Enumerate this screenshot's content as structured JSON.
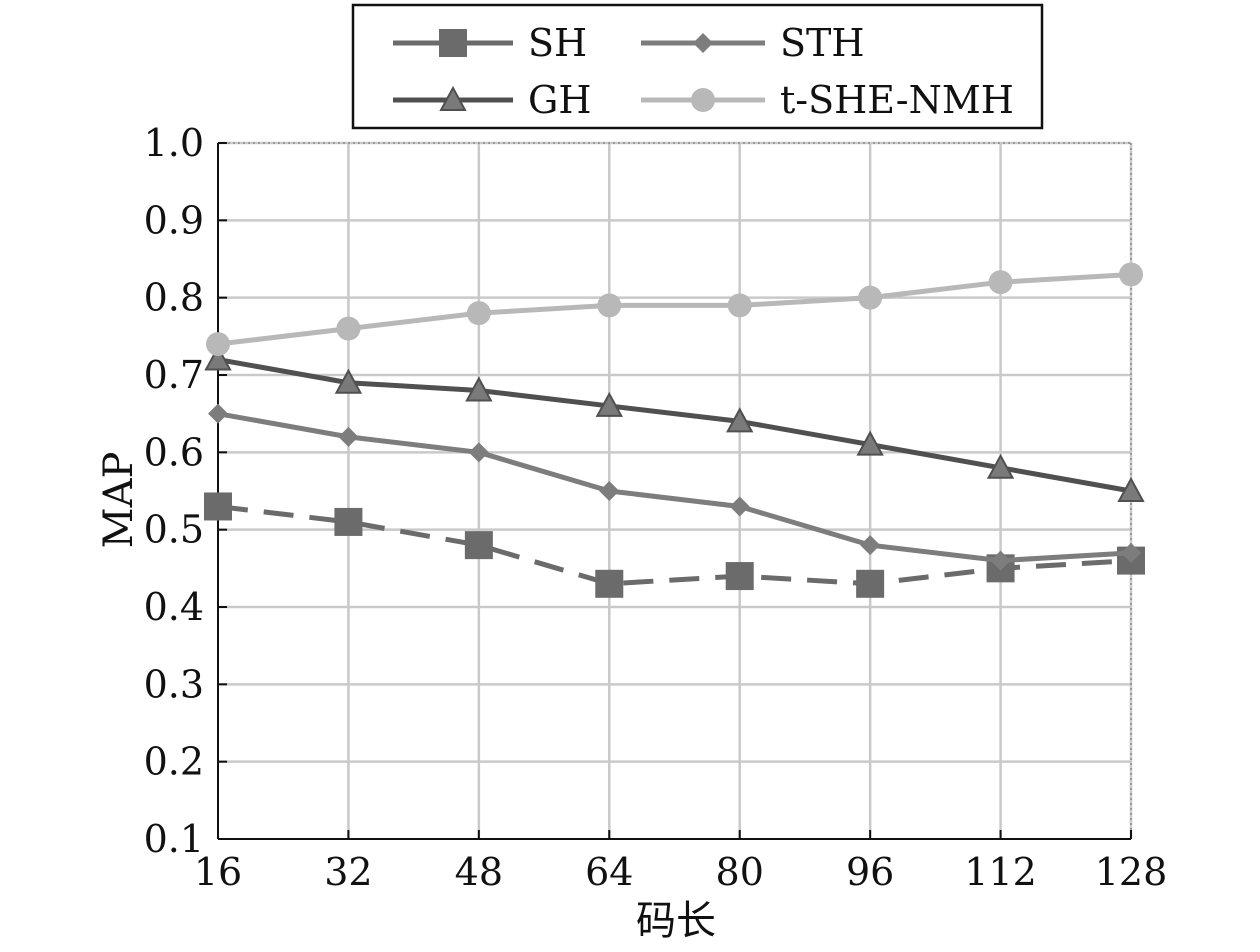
{
  "chart_data": {
    "type": "line",
    "title": "",
    "xlabel": "码长",
    "ylabel": "MAP",
    "x": [
      16,
      32,
      48,
      64,
      80,
      96,
      112,
      128
    ],
    "x_tick_labels": [
      "16",
      "32",
      "48",
      "64",
      "80",
      "96",
      "112",
      "128"
    ],
    "ylim": [
      0.1,
      1.0
    ],
    "y_ticks": [
      0.1,
      0.2,
      0.3,
      0.4,
      0.5,
      0.6,
      0.7,
      0.8,
      0.9,
      1.0
    ],
    "y_tick_labels": [
      "0.1",
      "0.2",
      "0.3",
      "0.4",
      "0.5",
      "0.6",
      "0.7",
      "0.8",
      "0.9",
      "1.0"
    ],
    "grid": true,
    "legend_position": "top-center",
    "series": [
      {
        "name": "SH",
        "marker": "square",
        "line_style": "dashed",
        "color": "#6b6b6b",
        "values": [
          0.53,
          0.51,
          0.48,
          0.43,
          0.44,
          0.43,
          0.45,
          0.46
        ]
      },
      {
        "name": "STH",
        "marker": "diamond",
        "line_style": "solid",
        "color": "#7d7d7d",
        "values": [
          0.65,
          0.62,
          0.6,
          0.55,
          0.53,
          0.48,
          0.46,
          0.47
        ]
      },
      {
        "name": "GH",
        "marker": "triangle",
        "line_style": "solid",
        "color": "#505050",
        "values": [
          0.72,
          0.69,
          0.68,
          0.66,
          0.64,
          0.61,
          0.58,
          0.55
        ]
      },
      {
        "name": "t-SHE-NMH",
        "marker": "circle",
        "line_style": "solid",
        "color": "#b8b8b8",
        "values": [
          0.74,
          0.76,
          0.78,
          0.79,
          0.79,
          0.8,
          0.82,
          0.83
        ]
      }
    ]
  }
}
